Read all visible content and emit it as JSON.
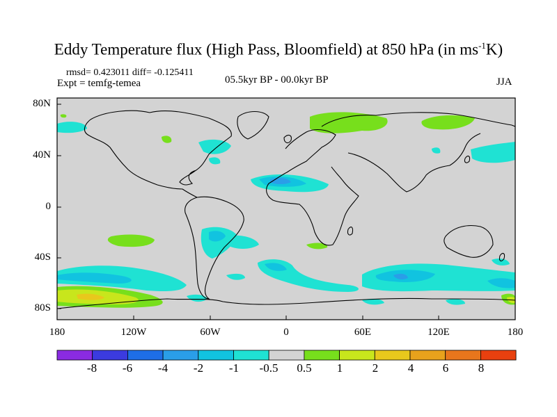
{
  "title": {
    "main": "Eddy Temperature flux (High Pass, Bloomfield) at 850 hPa (in ms",
    "exponent": "-1",
    "unit_end": "K)"
  },
  "stats": {
    "rmsd_line": "rmsd= 0.423011 diff= -0.125411",
    "expt_line": "Expt = temfg-temea",
    "period": "05.5kyr BP - 00.0kyr BP",
    "season": "JJA"
  },
  "map": {
    "lat_labels": [
      "80N",
      "40N",
      "0",
      "40S",
      "80S"
    ],
    "lon_labels": [
      "180",
      "120W",
      "60W",
      "0",
      "60E",
      "120E",
      "180"
    ],
    "background_color": "#d3d3d3",
    "coastline_color": "#000000"
  },
  "colorbar": {
    "labels": [
      "-8",
      "-6",
      "-4",
      "-2",
      "-1",
      "-0.5",
      "0.5",
      "1",
      "2",
      "4",
      "6",
      "8"
    ],
    "colors": [
      "#8a2be2",
      "#3b3bdf",
      "#1e6ee6",
      "#2a9ee8",
      "#11c3e0",
      "#1fe2d3",
      "#d3d3d3",
      "#77df1c",
      "#c8e61c",
      "#e8c81c",
      "#e8a21c",
      "#e8761c",
      "#e8400f"
    ]
  }
}
